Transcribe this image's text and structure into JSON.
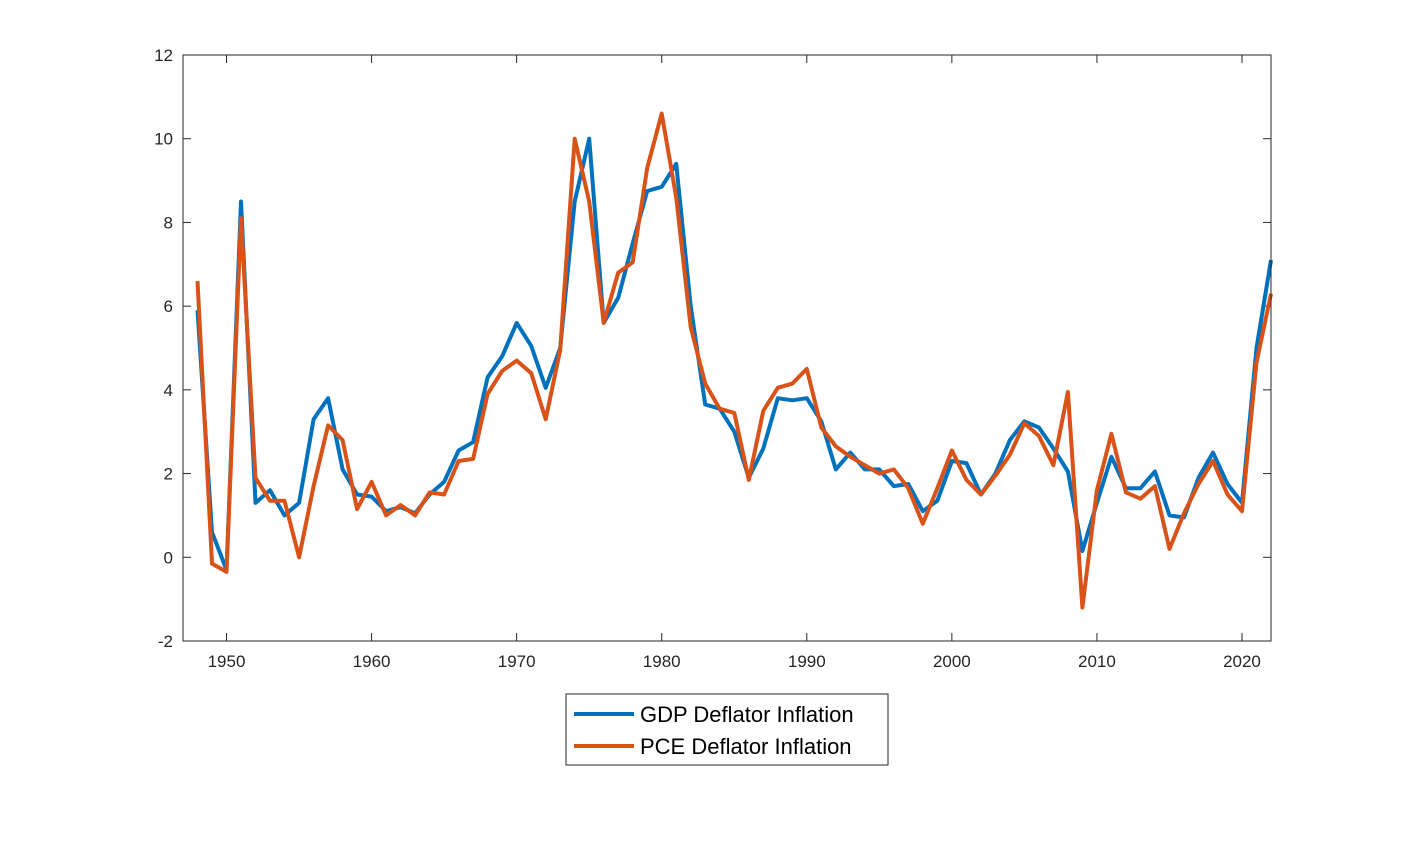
{
  "chart_data": {
    "type": "line",
    "title": "",
    "xlabel": "",
    "ylabel": "",
    "xlim": [
      1947,
      2022
    ],
    "ylim": [
      -2,
      12
    ],
    "x_ticks": [
      1950,
      1960,
      1970,
      1980,
      1990,
      2000,
      2010,
      2020
    ],
    "y_ticks": [
      -2,
      0,
      2,
      4,
      6,
      8,
      10,
      12
    ],
    "grid": false,
    "legend_position": "bottom-center-outside",
    "x": [
      1948,
      1949,
      1950,
      1951,
      1952,
      1953,
      1954,
      1955,
      1956,
      1957,
      1958,
      1959,
      1960,
      1961,
      1962,
      1963,
      1964,
      1965,
      1966,
      1967,
      1968,
      1969,
      1970,
      1971,
      1972,
      1973,
      1974,
      1975,
      1976,
      1977,
      1978,
      1979,
      1980,
      1981,
      1982,
      1983,
      1984,
      1985,
      1986,
      1987,
      1988,
      1989,
      1990,
      1991,
      1992,
      1993,
      1994,
      1995,
      1996,
      1997,
      1998,
      1999,
      2000,
      2001,
      2002,
      2003,
      2004,
      2005,
      2006,
      2007,
      2008,
      2009,
      2010,
      2011,
      2012,
      2013,
      2014,
      2015,
      2016,
      2017,
      2018,
      2019,
      2020,
      2021,
      2022
    ],
    "series": [
      {
        "name": "GDP Deflator Inflation",
        "color": "#0072BD",
        "values": [
          5.9,
          0.6,
          -0.3,
          8.5,
          1.3,
          1.6,
          1.0,
          1.3,
          3.3,
          3.8,
          2.1,
          1.5,
          1.45,
          1.1,
          1.2,
          1.05,
          1.5,
          1.8,
          2.55,
          2.75,
          4.3,
          4.8,
          5.6,
          5.05,
          4.05,
          5.0,
          8.5,
          10.0,
          5.6,
          6.2,
          7.5,
          8.75,
          8.85,
          9.4,
          6.0,
          3.65,
          3.55,
          3.0,
          1.9,
          2.6,
          3.8,
          3.75,
          3.8,
          3.25,
          2.1,
          2.5,
          2.1,
          2.1,
          1.7,
          1.75,
          1.1,
          1.35,
          2.3,
          2.25,
          1.5,
          2.0,
          2.8,
          3.25,
          3.1,
          2.6,
          2.05,
          0.15,
          1.3,
          2.4,
          1.65,
          1.65,
          2.05,
          1.0,
          0.95,
          1.9,
          2.5,
          1.75,
          1.3,
          5.0,
          7.1
        ]
      },
      {
        "name": "PCE Deflator Inflation",
        "color": "#D95319",
        "values": [
          6.6,
          -0.15,
          -0.35,
          8.1,
          1.9,
          1.35,
          1.35,
          0.0,
          1.7,
          3.15,
          2.8,
          1.15,
          1.8,
          1.0,
          1.25,
          1.0,
          1.55,
          1.5,
          2.3,
          2.35,
          3.9,
          4.45,
          4.7,
          4.4,
          3.3,
          4.95,
          10.0,
          8.5,
          5.6,
          6.8,
          7.05,
          9.3,
          10.6,
          8.6,
          5.5,
          4.15,
          3.55,
          3.45,
          1.85,
          3.5,
          4.05,
          4.15,
          4.5,
          3.1,
          2.65,
          2.4,
          2.2,
          2.0,
          2.1,
          1.65,
          0.8,
          1.65,
          2.55,
          1.85,
          1.5,
          1.95,
          2.45,
          3.2,
          2.9,
          2.2,
          3.95,
          -1.2,
          1.6,
          2.95,
          1.55,
          1.4,
          1.7,
          0.2,
          1.05,
          1.75,
          2.3,
          1.5,
          1.1,
          4.65,
          6.3
        ]
      }
    ]
  }
}
